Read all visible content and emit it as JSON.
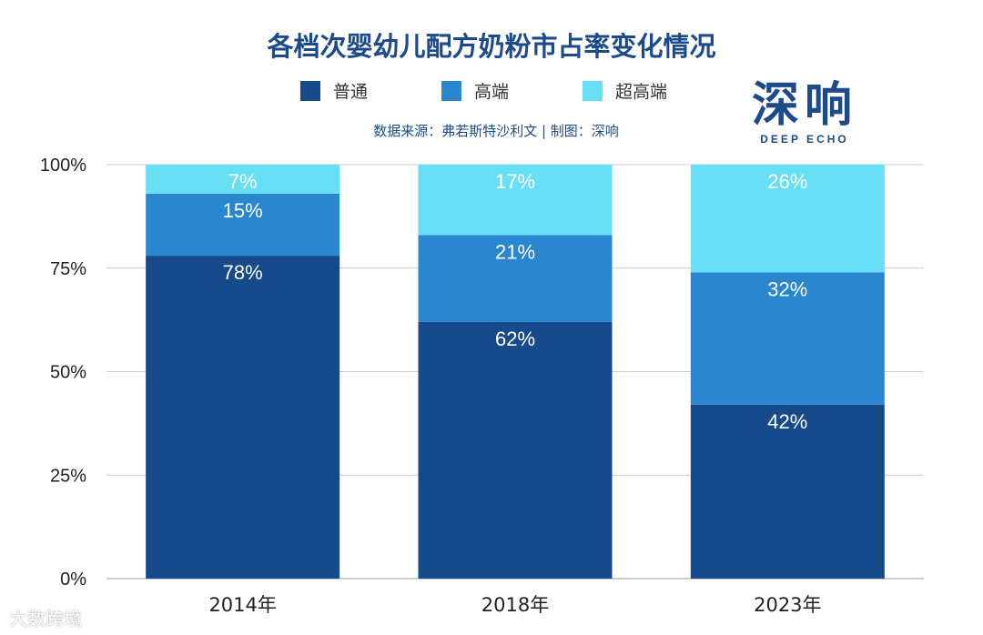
{
  "chart_data": {
    "type": "bar",
    "stacked": true,
    "title": "各档次婴幼儿配方奶粉市占率变化情况",
    "source": "数据来源：弗若斯特沙利文 | 制图：深响",
    "categories": [
      "2014年",
      "2018年",
      "2023年"
    ],
    "series": [
      {
        "name": "普通",
        "color": "#174a8b",
        "values": [
          78,
          62,
          42
        ]
      },
      {
        "name": "高端",
        "color": "#2a86cf",
        "values": [
          15,
          21,
          32
        ]
      },
      {
        "name": "超高端",
        "color": "#67dff5",
        "values": [
          7,
          17,
          26
        ]
      }
    ],
    "ylim": [
      0,
      100
    ],
    "yticks": [
      "0%",
      "25%",
      "50%",
      "75%",
      "100%"
    ],
    "grid": true,
    "legend": "top"
  },
  "logo": {
    "text": "深响",
    "subtext": "DEEP ECHO"
  },
  "watermark": "大数跨境"
}
